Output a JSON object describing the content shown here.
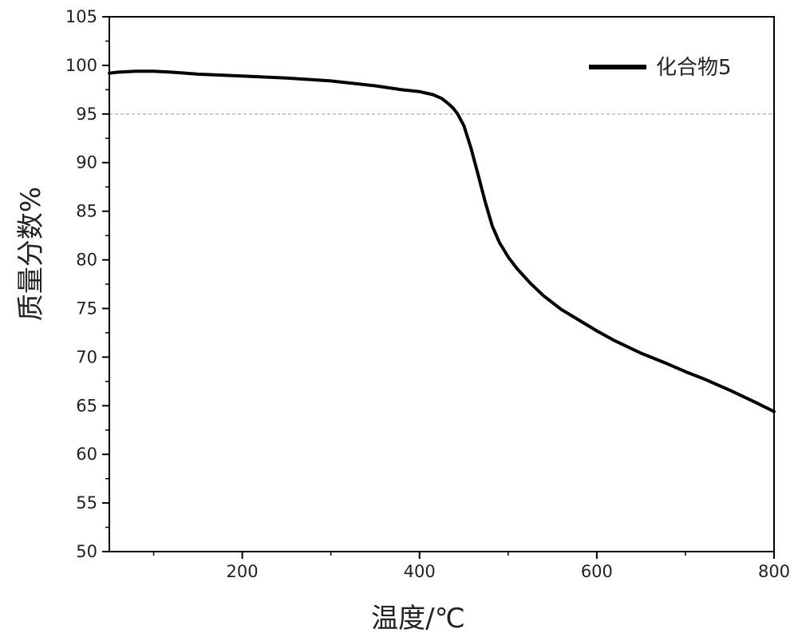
{
  "chart_data": {
    "type": "line",
    "title": "",
    "xlabel": "温度/℃",
    "ylabel": "质量分数%",
    "xlim": [
      50,
      800
    ],
    "ylim": [
      50,
      105
    ],
    "x_ticks": [
      200,
      400,
      600,
      800
    ],
    "y_ticks": [
      50,
      55,
      60,
      65,
      70,
      75,
      80,
      85,
      90,
      95,
      100,
      105
    ],
    "x_tick_labels": [
      "200",
      "400",
      "600",
      "800"
    ],
    "y_tick_labels": [
      "50",
      "55",
      "60",
      "65",
      "70",
      "75",
      "80",
      "85",
      "90",
      "95",
      "100",
      "105"
    ],
    "grid": false,
    "legend_position": "top-right",
    "reference_line": {
      "y": 95,
      "style": "dashed",
      "color": "#999999"
    },
    "series": [
      {
        "name": "化合物5",
        "color": "#000000",
        "x": [
          50,
          60,
          80,
          100,
          120,
          150,
          200,
          250,
          300,
          350,
          380,
          400,
          415,
          425,
          432,
          438,
          443,
          450,
          458,
          466,
          474,
          482,
          490,
          500,
          510,
          525,
          540,
          560,
          580,
          600,
          620,
          650,
          680,
          700,
          720,
          750,
          780,
          800
        ],
        "y": [
          99.2,
          99.3,
          99.4,
          99.4,
          99.3,
          99.1,
          98.9,
          98.7,
          98.4,
          97.9,
          97.5,
          97.3,
          97.0,
          96.6,
          96.1,
          95.6,
          95.0,
          93.8,
          91.5,
          88.8,
          86.0,
          83.5,
          81.8,
          80.3,
          79.1,
          77.6,
          76.3,
          74.9,
          73.8,
          72.7,
          71.7,
          70.4,
          69.3,
          68.5,
          67.8,
          66.6,
          65.3,
          64.4
        ]
      }
    ]
  }
}
